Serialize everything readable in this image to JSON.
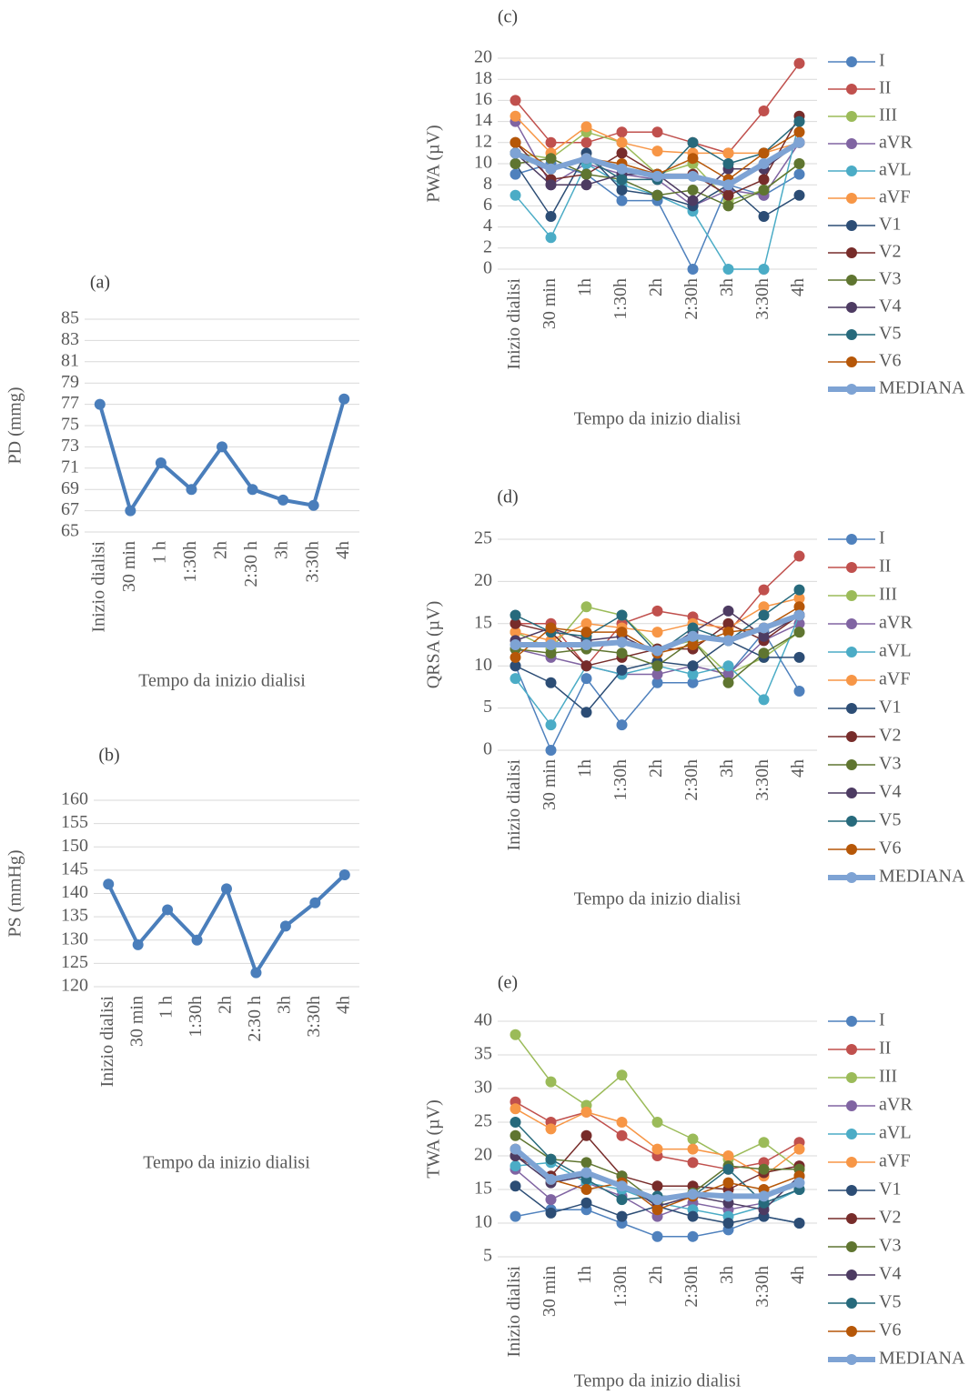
{
  "chart_data": [
    {
      "type": "line",
      "label": "(a)",
      "ylabel": "PD (mmg)",
      "xlabel": "Tempo da inizio dialisi",
      "categories": [
        "Inizio dialisi",
        "30 min",
        "1 h",
        "1:30h",
        "2h",
        "2:30 h",
        "3h",
        "3:30h",
        "4h"
      ],
      "values": [
        77,
        67,
        71.5,
        69,
        73,
        69,
        68,
        67.5,
        77.5
      ],
      "color": "#4a7ebb",
      "ylim": [
        65,
        85
      ],
      "yticks": [
        65,
        67,
        69,
        71,
        73,
        75,
        77,
        79,
        81,
        83,
        85
      ],
      "grid": true
    },
    {
      "type": "line",
      "label": "(b)",
      "ylabel": "PS (mmHg)",
      "xlabel": "Tempo da inizio dialisi",
      "categories": [
        "Inizio dialisi",
        "30 min",
        "1 h",
        "1:30h",
        "2h",
        "2:30 h",
        "3h",
        "3:30h",
        "4h"
      ],
      "values": [
        142,
        129,
        136.5,
        130,
        141,
        123,
        133,
        138,
        144
      ],
      "color": "#4a7ebb",
      "ylim": [
        120,
        160
      ],
      "yticks": [
        120,
        125,
        130,
        135,
        140,
        145,
        150,
        155,
        160
      ],
      "grid": true
    },
    {
      "type": "line",
      "label": "(c)",
      "ylabel": "PWA (µV)",
      "xlabel": "Tempo da inizio dialisi",
      "categories": [
        "Inizio dialisi",
        "30 min",
        "1h",
        "1:30h",
        "2h",
        "2:30h",
        "3h",
        "3:30h",
        "4h"
      ],
      "ylim": [
        0,
        20
      ],
      "yticks": [
        0,
        2,
        4,
        6,
        8,
        10,
        12,
        14,
        16,
        18,
        20
      ],
      "grid": true,
      "legend": "right",
      "series": [
        {
          "name": "I",
          "color": "#4f81bd",
          "values": [
            9,
            10,
            9,
            6.5,
            6.5,
            0,
            8,
            7,
            9
          ]
        },
        {
          "name": "II",
          "color": "#c0504d",
          "values": [
            16,
            12,
            12,
            13,
            13,
            12,
            11,
            15,
            19.5
          ]
        },
        {
          "name": "III",
          "color": "#9bbb59",
          "values": [
            11,
            10.5,
            13,
            12,
            9,
            10,
            6.5,
            7.5,
            10
          ]
        },
        {
          "name": "aVR",
          "color": "#8064a2",
          "values": [
            14,
            8,
            10,
            9,
            8.5,
            6,
            7.5,
            7,
            12
          ]
        },
        {
          "name": "aVL",
          "color": "#4bacc6",
          "values": [
            7,
            3,
            10,
            8,
            7,
            5.5,
            0,
            0,
            14
          ]
        },
        {
          "name": "aVF",
          "color": "#f79646",
          "values": [
            14.5,
            11,
            13.5,
            12,
            11.2,
            11,
            11,
            11,
            12
          ]
        },
        {
          "name": "V1",
          "color": "#2c4d75",
          "values": [
            10,
            5,
            11,
            7.5,
            7,
            6,
            8,
            5,
            7
          ]
        },
        {
          "name": "V2",
          "color": "#772c2a",
          "values": [
            12,
            8.5,
            9,
            11,
            9,
            9,
            7,
            8.5,
            14.5
          ]
        },
        {
          "name": "V3",
          "color": "#5f7530",
          "values": [
            10,
            10.5,
            9,
            8.5,
            7,
            7.5,
            6,
            7.5,
            10
          ]
        },
        {
          "name": "V4",
          "color": "#4d3b62",
          "values": [
            11,
            8,
            8,
            9,
            9,
            6.5,
            9.5,
            9.5,
            12
          ]
        },
        {
          "name": "V5",
          "color": "#276a7c",
          "values": [
            11,
            9.5,
            10.5,
            8.5,
            8.5,
            12,
            10,
            11,
            14
          ]
        },
        {
          "name": "V6",
          "color": "#b65708",
          "values": [
            12,
            9.5,
            10.5,
            10,
            9,
            10.5,
            8.5,
            11,
            13
          ]
        },
        {
          "name": "MEDIANA",
          "color": "#7ea3d4",
          "values": [
            11,
            9.5,
            10.5,
            9.5,
            8.8,
            8.8,
            8,
            10,
            12
          ]
        }
      ]
    },
    {
      "type": "line",
      "label": "(d)",
      "ylabel": "QRSA (µV)",
      "xlabel": "Tempo da inizio dialisi",
      "categories": [
        "Inizio dialisi",
        "30 min",
        "1h",
        "1:30h",
        "2h",
        "2:30h",
        "3h",
        "3:30h",
        "4h"
      ],
      "ylim": [
        0,
        25
      ],
      "yticks": [
        0,
        5,
        10,
        15,
        20,
        25
      ],
      "grid": true,
      "legend": "right",
      "series": [
        {
          "name": "I",
          "color": "#4f81bd",
          "values": [
            10,
            0,
            8.5,
            3,
            8,
            8,
            9,
            14,
            7
          ]
        },
        {
          "name": "II",
          "color": "#c0504d",
          "values": [
            15,
            15,
            10,
            15,
            16.5,
            15.8,
            14,
            19,
            23
          ]
        },
        {
          "name": "III",
          "color": "#9bbb59",
          "values": [
            14,
            12,
            17,
            16,
            12,
            13,
            9,
            11,
            14
          ]
        },
        {
          "name": "aVR",
          "color": "#8064a2",
          "values": [
            12,
            11,
            10,
            9,
            9,
            10,
            9,
            13,
            15
          ]
        },
        {
          "name": "aVL",
          "color": "#4bacc6",
          "values": [
            8.5,
            3,
            10,
            9,
            10,
            9,
            10,
            6,
            16
          ]
        },
        {
          "name": "aVF",
          "color": "#f79646",
          "values": [
            14,
            13,
            15,
            14.5,
            14,
            15,
            14.5,
            17,
            18
          ]
        },
        {
          "name": "V1",
          "color": "#2c4d75",
          "values": [
            10,
            8,
            4.5,
            9.5,
            10.5,
            10,
            13,
            11,
            11
          ]
        },
        {
          "name": "V2",
          "color": "#772c2a",
          "values": [
            15,
            14,
            10,
            11,
            12,
            12,
            15,
            13,
            16
          ]
        },
        {
          "name": "V3",
          "color": "#5f7530",
          "values": [
            12,
            11.5,
            12,
            11.5,
            10,
            13,
            8,
            11.5,
            14
          ]
        },
        {
          "name": "V4",
          "color": "#4d3b62",
          "values": [
            13,
            14.5,
            13,
            13.5,
            11.5,
            14,
            16.5,
            13.5,
            16
          ]
        },
        {
          "name": "V5",
          "color": "#276a7c",
          "values": [
            16,
            14,
            13.5,
            16,
            11.5,
            14.5,
            13,
            16,
            19
          ]
        },
        {
          "name": "V6",
          "color": "#b65708",
          "values": [
            11,
            14.5,
            14,
            14,
            11.5,
            12.5,
            14,
            14.5,
            17
          ]
        },
        {
          "name": "MEDIANA",
          "color": "#7ea3d4",
          "values": [
            12.5,
            12.5,
            12.5,
            12.8,
            11.8,
            13.5,
            13,
            14.5,
            16
          ]
        }
      ]
    },
    {
      "type": "line",
      "label": "(e)",
      "ylabel": "TWA (µV)",
      "xlabel": "Tempo da inizio dialisi",
      "categories": [
        "Inizio dialisi",
        "30 min",
        "1h",
        "1:30h",
        "2h",
        "2:30h",
        "3h",
        "3:30h",
        "4h"
      ],
      "ylim": [
        5,
        40
      ],
      "yticks": [
        5,
        10,
        15,
        20,
        25,
        30,
        35,
        40
      ],
      "grid": true,
      "legend": "right",
      "series": [
        {
          "name": "I",
          "color": "#4f81bd",
          "values": [
            11,
            12,
            12,
            10,
            8,
            8,
            9,
            11,
            10
          ]
        },
        {
          "name": "II",
          "color": "#c0504d",
          "values": [
            28,
            25,
            26.5,
            23,
            20,
            19,
            18,
            19,
            22
          ]
        },
        {
          "name": "III",
          "color": "#9bbb59",
          "values": [
            38,
            31,
            27.5,
            32,
            25,
            22.5,
            19.5,
            22,
            18
          ]
        },
        {
          "name": "aVR",
          "color": "#8064a2",
          "values": [
            18,
            13.5,
            16,
            14,
            11,
            13,
            12,
            13,
            15
          ]
        },
        {
          "name": "aVL",
          "color": "#4bacc6",
          "values": [
            18.5,
            19,
            16,
            15,
            13,
            12,
            11,
            12.5,
            15
          ]
        },
        {
          "name": "aVF",
          "color": "#f79646",
          "values": [
            27,
            24,
            26.5,
            25,
            21,
            21,
            20,
            17,
            21
          ]
        },
        {
          "name": "V1",
          "color": "#2c4d75",
          "values": [
            15.5,
            11.5,
            13,
            11,
            12.5,
            11,
            10,
            11,
            10
          ]
        },
        {
          "name": "V2",
          "color": "#772c2a",
          "values": [
            20,
            17,
            23,
            17,
            15.5,
            15.5,
            15,
            17.5,
            18.5
          ]
        },
        {
          "name": "V3",
          "color": "#5f7530",
          "values": [
            23,
            19.5,
            19,
            17,
            13,
            14.5,
            18.5,
            18,
            18
          ]
        },
        {
          "name": "V4",
          "color": "#4d3b62",
          "values": [
            20,
            16,
            17,
            16,
            12.5,
            14,
            13,
            12,
            17
          ]
        },
        {
          "name": "V5",
          "color": "#276a7c",
          "values": [
            25,
            19.5,
            16.5,
            13.5,
            14,
            14,
            18,
            13,
            15
          ]
        },
        {
          "name": "V6",
          "color": "#b65708",
          "values": [
            21,
            16.5,
            15,
            16,
            12,
            14,
            16,
            15,
            17
          ]
        },
        {
          "name": "MEDIANA",
          "color": "#7ea3d4",
          "values": [
            21,
            16.5,
            17.5,
            15.5,
            13.5,
            14.3,
            14,
            14,
            16
          ]
        }
      ]
    }
  ]
}
